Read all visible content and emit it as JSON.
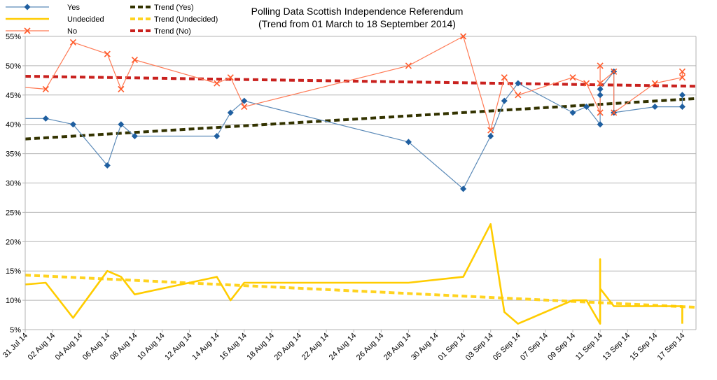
{
  "chart_data": {
    "type": "line",
    "title": "Polling Data Scottish Independence Referendum",
    "subtitle": "(Trend from 01 March to 18 September 2014)",
    "xlabel": "",
    "ylabel": "",
    "ylim": [
      5,
      55
    ],
    "yticks": [
      "5%",
      "10%",
      "15%",
      "20%",
      "25%",
      "30%",
      "35%",
      "40%",
      "45%",
      "50%",
      "55%"
    ],
    "yticks_values": [
      5,
      10,
      15,
      20,
      25,
      30,
      35,
      40,
      45,
      50,
      55
    ],
    "x_start": "2014-07-31",
    "x_end": "2014-09-18",
    "xticks": [
      "31 Jul 14",
      "02 Aug 14",
      "04 Aug 14",
      "06 Aug 14",
      "08 Aug 14",
      "10 Aug 14",
      "12 Aug 14",
      "14 Aug 14",
      "16 Aug 14",
      "18 Aug 14",
      "20 Aug 14",
      "22 Aug 14",
      "24 Aug 14",
      "26 Aug 14",
      "28 Aug 14",
      "30 Aug 14",
      "01 Sep 14",
      "03 Sep 14",
      "05 Sep 14",
      "07 Sep 14",
      "09 Sep 14",
      "11 Sep 14",
      "13 Sep 14",
      "15 Sep 14",
      "17 Sep 14"
    ],
    "xticks_dates": [
      "2014-07-31",
      "2014-08-02",
      "2014-08-04",
      "2014-08-06",
      "2014-08-08",
      "2014-08-10",
      "2014-08-12",
      "2014-08-14",
      "2014-08-16",
      "2014-08-18",
      "2014-08-20",
      "2014-08-22",
      "2014-08-24",
      "2014-08-26",
      "2014-08-28",
      "2014-08-30",
      "2014-09-01",
      "2014-09-03",
      "2014-09-05",
      "2014-09-07",
      "2014-09-09",
      "2014-09-11",
      "2014-09-13",
      "2014-09-15",
      "2014-09-17"
    ],
    "grid": true,
    "legend_position": "top-left",
    "series": [
      {
        "name": "Yes",
        "color": "#1f5fa0",
        "line_color": "#5b8ab8",
        "marker": "diamond",
        "points": [
          {
            "x": "2014-07-31",
            "y": 41
          },
          {
            "x": "2014-08-01.5",
            "y": 41
          },
          {
            "x": "2014-08-03.5",
            "y": 40
          },
          {
            "x": "2014-08-06",
            "y": 33
          },
          {
            "x": "2014-08-07",
            "y": 40
          },
          {
            "x": "2014-08-08",
            "y": 38
          },
          {
            "x": "2014-08-14",
            "y": 38
          },
          {
            "x": "2014-08-15",
            "y": 42
          },
          {
            "x": "2014-08-16",
            "y": 44
          },
          {
            "x": "2014-08-28",
            "y": 37
          },
          {
            "x": "2014-09-01",
            "y": 29
          },
          {
            "x": "2014-09-03",
            "y": 38
          },
          {
            "x": "2014-09-04",
            "y": 44
          },
          {
            "x": "2014-09-05",
            "y": 47
          },
          {
            "x": "2014-09-09",
            "y": 42
          },
          {
            "x": "2014-09-10",
            "y": 43
          },
          {
            "x": "2014-09-11",
            "y": 40
          },
          {
            "x": "2014-09-11",
            "y": 45
          },
          {
            "x": "2014-09-11",
            "y": 46
          },
          {
            "x": "2014-09-12",
            "y": 49
          },
          {
            "x": "2014-09-12",
            "y": 42
          },
          {
            "x": "2014-09-15",
            "y": 43
          },
          {
            "x": "2014-09-17",
            "y": 43
          },
          {
            "x": "2014-09-17",
            "y": 45
          }
        ]
      },
      {
        "name": "Undecided",
        "color": "#ffcc00",
        "marker": "none",
        "points": [
          {
            "x": "2014-07-31",
            "y": 12.7
          },
          {
            "x": "2014-08-01.5",
            "y": 13
          },
          {
            "x": "2014-08-03.5",
            "y": 7
          },
          {
            "x": "2014-08-06",
            "y": 15
          },
          {
            "x": "2014-08-07",
            "y": 14
          },
          {
            "x": "2014-08-08",
            "y": 11
          },
          {
            "x": "2014-08-14",
            "y": 14
          },
          {
            "x": "2014-08-15",
            "y": 10
          },
          {
            "x": "2014-08-16",
            "y": 13
          },
          {
            "x": "2014-08-28",
            "y": 13
          },
          {
            "x": "2014-09-01",
            "y": 14
          },
          {
            "x": "2014-09-03",
            "y": 23
          },
          {
            "x": "2014-09-04",
            "y": 8
          },
          {
            "x": "2014-09-05",
            "y": 6
          },
          {
            "x": "2014-09-09",
            "y": 10
          },
          {
            "x": "2014-09-10",
            "y": 10
          },
          {
            "x": "2014-09-11",
            "y": 6
          },
          {
            "x": "2014-09-11",
            "y": 17
          },
          {
            "x": "2014-09-11",
            "y": 12
          },
          {
            "x": "2014-09-12",
            "y": 9
          },
          {
            "x": "2014-09-15",
            "y": 9
          },
          {
            "x": "2014-09-17",
            "y": 9
          },
          {
            "x": "2014-09-17",
            "y": 6
          }
        ]
      },
      {
        "name": "No",
        "color": "#ff5a2a",
        "line_color": "#ff7a55",
        "marker": "cross",
        "points": [
          {
            "x": "2014-07-31",
            "y": 46.3
          },
          {
            "x": "2014-08-01.5",
            "y": 46
          },
          {
            "x": "2014-08-03.5",
            "y": 54
          },
          {
            "x": "2014-08-06",
            "y": 52
          },
          {
            "x": "2014-08-07",
            "y": 46
          },
          {
            "x": "2014-08-08",
            "y": 51
          },
          {
            "x": "2014-08-14",
            "y": 47
          },
          {
            "x": "2014-08-15",
            "y": 48
          },
          {
            "x": "2014-08-16",
            "y": 43
          },
          {
            "x": "2014-08-28",
            "y": 50
          },
          {
            "x": "2014-09-01",
            "y": 55
          },
          {
            "x": "2014-09-03",
            "y": 39
          },
          {
            "x": "2014-09-04",
            "y": 48
          },
          {
            "x": "2014-09-05",
            "y": 45
          },
          {
            "x": "2014-09-09",
            "y": 48
          },
          {
            "x": "2014-09-10",
            "y": 47
          },
          {
            "x": "2014-09-11",
            "y": 42
          },
          {
            "x": "2014-09-11",
            "y": 50
          },
          {
            "x": "2014-09-11",
            "y": 47
          },
          {
            "x": "2014-09-12",
            "y": 49
          },
          {
            "x": "2014-09-12",
            "y": 42
          },
          {
            "x": "2014-09-15",
            "y": 47
          },
          {
            "x": "2014-09-17",
            "y": 48
          },
          {
            "x": "2014-09-17",
            "y": 49
          }
        ]
      }
    ],
    "trends": [
      {
        "name": "Trend (Yes)",
        "color": "#333300",
        "from": {
          "x": "2014-07-31",
          "y": 37.5
        },
        "to": {
          "x": "2014-09-18",
          "y": 44.4
        }
      },
      {
        "name": "Trend (Undecided)",
        "color": "#ffd320",
        "from": {
          "x": "2014-07-31",
          "y": 14.3
        },
        "to": {
          "x": "2014-09-18",
          "y": 8.8
        }
      },
      {
        "name": "Trend (No)",
        "color": "#c9211e",
        "from": {
          "x": "2014-07-31",
          "y": 48.2
        },
        "to": {
          "x": "2014-09-18",
          "y": 46.5
        }
      }
    ],
    "legend": [
      {
        "label": "Yes",
        "kind": "series",
        "ref": "Yes"
      },
      {
        "label": "Trend (Yes)",
        "kind": "trend",
        "ref": "Trend (Yes)"
      },
      {
        "label": "Undecided",
        "kind": "series",
        "ref": "Undecided"
      },
      {
        "label": "Trend (Undecided)",
        "kind": "trend",
        "ref": "Trend (Undecided)"
      },
      {
        "label": "No",
        "kind": "series",
        "ref": "No"
      },
      {
        "label": "Trend (No)",
        "kind": "trend",
        "ref": "Trend (No)"
      }
    ]
  }
}
